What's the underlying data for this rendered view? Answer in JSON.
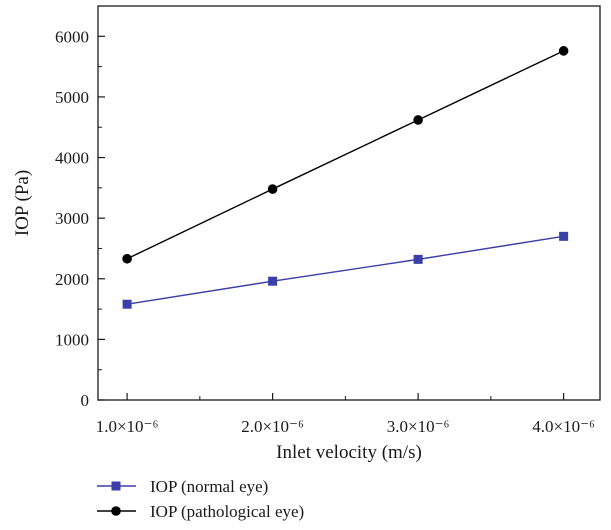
{
  "chart_data": {
    "type": "line",
    "title": "",
    "xlabel": "Inlet velocity (m/s)",
    "ylabel": "IOP (Pa)",
    "x": [
      1e-06,
      2e-06,
      3e-06,
      4e-06
    ],
    "x_tick_labels": [
      "1.0×10⁻⁶",
      "2.0×10⁻⁶",
      "3.0×10⁻⁶",
      "4.0×10⁻⁶"
    ],
    "y_ticks": [
      0,
      1000,
      2000,
      3000,
      4000,
      5000,
      6000
    ],
    "y_tick_labels": [
      "0",
      "1000",
      "2000",
      "3000",
      "4000",
      "5000",
      "6000"
    ],
    "xlim": [
      8e-07,
      4.25e-06
    ],
    "ylim": [
      0,
      6500
    ],
    "grid": false,
    "legend_position": "bottom-left, below plot",
    "series": [
      {
        "name": "IOP (normal eye)",
        "values": [
          1580,
          1960,
          2320,
          2700
        ],
        "color": "#3b3fa8",
        "marker": "square"
      },
      {
        "name": "IOP (pathological eye)",
        "values": [
          2330,
          3480,
          4620,
          5760
        ],
        "color": "#000000",
        "marker": "circle"
      }
    ]
  }
}
